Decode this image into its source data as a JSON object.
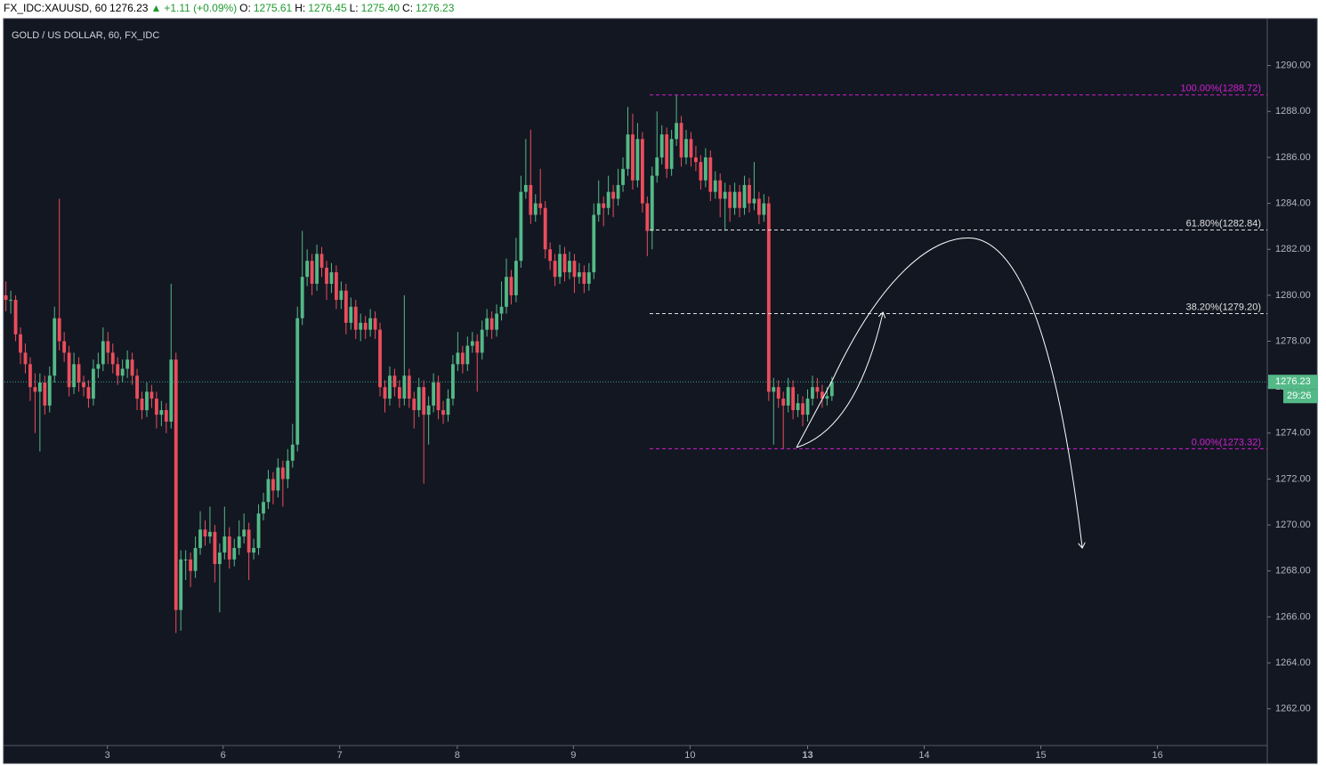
{
  "header": {
    "symbol": "FX_IDC:XAUUSD, 60",
    "last": "1276.23",
    "change": "+1.11 (+0.09%)",
    "o_label": "O:",
    "o": "1275.61",
    "h_label": "H:",
    "h": "1276.45",
    "l_label": "L:",
    "l": "1275.40",
    "c_label": "C:",
    "c": "1276.23"
  },
  "chart_data": {
    "type": "candlestick",
    "title": "GOLD / US DOLLAR, 60, FX_IDC",
    "countdown": "29:26",
    "up_color": "#53b987",
    "down_color": "#eb4d5c",
    "ylim": [
      1260.4,
      1292.0
    ],
    "yticks": [
      {
        "value": 1262,
        "label": "1262.00"
      },
      {
        "value": 1264,
        "label": "1264.00"
      },
      {
        "value": 1266,
        "label": "1266.00"
      },
      {
        "value": 1268,
        "label": "1268.00"
      },
      {
        "value": 1270,
        "label": "1270.00"
      },
      {
        "value": 1272,
        "label": "1272.00"
      },
      {
        "value": 1274,
        "label": "1274.00"
      },
      {
        "value": 1276,
        "label": "1276.00"
      },
      {
        "value": 1278,
        "label": "1278.00"
      },
      {
        "value": 1280,
        "label": "1280.00"
      },
      {
        "value": 1282,
        "label": "1282.00"
      },
      {
        "value": 1284,
        "label": "1284.00"
      },
      {
        "value": 1286,
        "label": "1286.00"
      },
      {
        "value": 1288,
        "label": "1288.00"
      },
      {
        "value": 1290,
        "label": "1290.00"
      }
    ],
    "xlim": [
      -0.3,
      259.6
    ],
    "xticks": [
      {
        "value": 20.9,
        "label": "3"
      },
      {
        "value": 44.7,
        "label": "6"
      },
      {
        "value": 68.7,
        "label": "7"
      },
      {
        "value": 92.9,
        "label": "8"
      },
      {
        "value": 116.8,
        "label": "9"
      },
      {
        "value": 140.8,
        "label": "10"
      },
      {
        "value": 165,
        "label": "13"
      },
      {
        "value": 189,
        "label": "14"
      },
      {
        "value": 213,
        "label": "15"
      },
      {
        "value": 237,
        "label": "16"
      }
    ],
    "fib_levels": [
      {
        "value": 1288.72,
        "label": "100.00%(1288.72)",
        "color": "#d020d0"
      },
      {
        "value": 1282.84,
        "label": "61.80%(1282.84)",
        "color": "#e0e0e0"
      },
      {
        "value": 1279.2,
        "label": "38.20%(1279.20)",
        "color": "#e0e0e0"
      },
      {
        "value": 1273.32,
        "label": "0.00%(1273.32)",
        "color": "#d020d0"
      }
    ],
    "ohlc": [
      [
        1280.0,
        1280.6,
        1279.3,
        1279.8
      ],
      [
        1279.8,
        1280.2,
        1279.2,
        1279.8
      ],
      [
        1279.8,
        1280.0,
        1278.0,
        1278.3
      ],
      [
        1278.3,
        1278.6,
        1277.0,
        1277.5
      ],
      [
        1277.5,
        1277.9,
        1276.6,
        1277.0
      ],
      [
        1277.0,
        1277.3,
        1275.4,
        1276.0
      ],
      [
        1276.0,
        1276.6,
        1274.0,
        1275.8
      ],
      [
        1275.8,
        1276.6,
        1273.2,
        1276.2
      ],
      [
        1276.2,
        1276.5,
        1274.8,
        1275.2
      ],
      [
        1275.2,
        1276.9,
        1274.9,
        1276.5
      ],
      [
        1276.5,
        1279.5,
        1276.2,
        1279.0
      ],
      [
        1279.0,
        1284.2,
        1277.6,
        1278.0
      ],
      [
        1278.0,
        1278.4,
        1277.1,
        1277.5
      ],
      [
        1277.5,
        1277.8,
        1275.6,
        1276.0
      ],
      [
        1276.0,
        1277.5,
        1275.7,
        1277.0
      ],
      [
        1277.0,
        1277.3,
        1275.8,
        1276.2
      ],
      [
        1276.2,
        1276.5,
        1275.6,
        1276.0
      ],
      [
        1276.0,
        1276.3,
        1275.1,
        1275.5
      ],
      [
        1275.5,
        1277.2,
        1275.2,
        1276.8
      ],
      [
        1276.8,
        1277.5,
        1276.4,
        1277.0
      ],
      [
        1277.0,
        1278.6,
        1276.7,
        1278.0
      ],
      [
        1278.0,
        1278.4,
        1277.0,
        1277.5
      ],
      [
        1277.5,
        1277.9,
        1276.6,
        1277.0
      ],
      [
        1277.0,
        1277.3,
        1276.1,
        1276.5
      ],
      [
        1276.5,
        1277.2,
        1276.2,
        1276.8
      ],
      [
        1276.8,
        1277.6,
        1276.4,
        1277.2
      ],
      [
        1277.2,
        1277.5,
        1276.1,
        1276.5
      ],
      [
        1276.5,
        1276.8,
        1275.0,
        1275.5
      ],
      [
        1275.5,
        1275.8,
        1274.6,
        1275.0
      ],
      [
        1275.0,
        1276.2,
        1274.7,
        1275.8
      ],
      [
        1275.8,
        1276.1,
        1275.1,
        1275.5
      ],
      [
        1275.5,
        1275.8,
        1274.2,
        1274.8
      ],
      [
        1274.8,
        1275.4,
        1274.3,
        1275.0
      ],
      [
        1275.0,
        1275.3,
        1274.0,
        1274.5
      ],
      [
        1274.5,
        1280.5,
        1274.2,
        1277.2
      ],
      [
        1277.2,
        1277.5,
        1265.3,
        1266.3
      ],
      [
        1266.3,
        1268.9,
        1265.4,
        1268.5
      ],
      [
        1268.5,
        1268.9,
        1267.6,
        1268.5
      ],
      [
        1268.5,
        1268.8,
        1267.3,
        1268.0
      ],
      [
        1268.0,
        1269.5,
        1267.7,
        1269.0
      ],
      [
        1269.0,
        1270.6,
        1268.7,
        1269.8
      ],
      [
        1269.8,
        1270.2,
        1269.1,
        1269.5
      ],
      [
        1269.5,
        1270.8,
        1269.2,
        1269.7
      ],
      [
        1269.7,
        1270.0,
        1267.5,
        1268.3
      ],
      [
        1268.3,
        1269.2,
        1266.2,
        1268.8
      ],
      [
        1268.8,
        1270.8,
        1268.5,
        1269.5
      ],
      [
        1269.5,
        1269.9,
        1268.1,
        1268.5
      ],
      [
        1268.5,
        1269.4,
        1268.2,
        1269.0
      ],
      [
        1269.0,
        1270.2,
        1268.7,
        1269.5
      ],
      [
        1269.5,
        1270.5,
        1269.2,
        1269.8
      ],
      [
        1269.8,
        1270.1,
        1267.6,
        1268.8
      ],
      [
        1268.8,
        1269.4,
        1268.5,
        1269.0
      ],
      [
        1269.0,
        1270.9,
        1268.7,
        1270.5
      ],
      [
        1270.5,
        1271.4,
        1270.2,
        1271.0
      ],
      [
        1271.0,
        1272.4,
        1270.7,
        1272.0
      ],
      [
        1272.0,
        1272.3,
        1270.9,
        1271.5
      ],
      [
        1271.5,
        1272.9,
        1271.2,
        1272.5
      ],
      [
        1272.5,
        1272.8,
        1270.8,
        1272.0
      ],
      [
        1272.0,
        1273.3,
        1271.6,
        1272.8
      ],
      [
        1272.8,
        1274.4,
        1272.5,
        1273.5
      ],
      [
        1273.5,
        1279.5,
        1273.2,
        1279.0
      ],
      [
        1279.0,
        1282.8,
        1278.7,
        1280.8
      ],
      [
        1280.8,
        1282.0,
        1280.4,
        1281.5
      ],
      [
        1281.5,
        1281.8,
        1280.0,
        1280.5
      ],
      [
        1280.5,
        1282.2,
        1280.2,
        1281.8
      ],
      [
        1281.8,
        1282.1,
        1280.8,
        1281.2
      ],
      [
        1281.2,
        1281.5,
        1279.8,
        1280.5
      ],
      [
        1280.5,
        1281.4,
        1280.1,
        1281.0
      ],
      [
        1281.0,
        1281.3,
        1279.4,
        1279.8
      ],
      [
        1279.8,
        1280.6,
        1279.4,
        1280.2
      ],
      [
        1280.2,
        1280.5,
        1278.3,
        1278.8
      ],
      [
        1278.8,
        1279.9,
        1278.5,
        1279.5
      ],
      [
        1279.5,
        1279.8,
        1278.1,
        1278.5
      ],
      [
        1278.5,
        1279.2,
        1278.0,
        1278.8
      ],
      [
        1278.8,
        1279.1,
        1278.1,
        1278.5
      ],
      [
        1278.5,
        1279.4,
        1278.2,
        1279.0
      ],
      [
        1279.0,
        1279.3,
        1278.1,
        1278.5
      ],
      [
        1278.5,
        1278.8,
        1275.6,
        1276.0
      ],
      [
        1276.0,
        1276.3,
        1274.9,
        1275.5
      ],
      [
        1275.5,
        1276.9,
        1275.2,
        1276.5
      ],
      [
        1276.5,
        1276.8,
        1275.6,
        1276.0
      ],
      [
        1276.0,
        1276.3,
        1275.1,
        1275.5
      ],
      [
        1275.5,
        1280.0,
        1275.2,
        1276.5
      ],
      [
        1276.5,
        1276.8,
        1275.1,
        1275.5
      ],
      [
        1275.5,
        1275.8,
        1274.2,
        1275.0
      ],
      [
        1275.0,
        1276.4,
        1274.7,
        1276.0
      ],
      [
        1276.0,
        1276.3,
        1271.8,
        1274.8
      ],
      [
        1274.8,
        1275.6,
        1273.5,
        1275.2
      ],
      [
        1275.2,
        1276.6,
        1274.9,
        1276.2
      ],
      [
        1276.2,
        1276.5,
        1274.6,
        1275.0
      ],
      [
        1275.0,
        1275.4,
        1274.4,
        1274.8
      ],
      [
        1274.8,
        1275.9,
        1274.5,
        1275.5
      ],
      [
        1275.5,
        1277.4,
        1275.2,
        1277.0
      ],
      [
        1277.0,
        1278.4,
        1276.7,
        1277.5
      ],
      [
        1277.5,
        1277.8,
        1276.6,
        1277.0
      ],
      [
        1277.0,
        1278.2,
        1276.7,
        1277.8
      ],
      [
        1277.8,
        1278.4,
        1277.5,
        1278.0
      ],
      [
        1278.0,
        1278.3,
        1275.8,
        1277.5
      ],
      [
        1277.5,
        1278.9,
        1277.2,
        1278.5
      ],
      [
        1278.5,
        1279.4,
        1278.2,
        1279.0
      ],
      [
        1279.0,
        1279.3,
        1278.1,
        1278.5
      ],
      [
        1278.5,
        1279.6,
        1278.2,
        1279.2
      ],
      [
        1279.2,
        1280.6,
        1278.9,
        1279.5
      ],
      [
        1279.5,
        1281.6,
        1279.2,
        1280.8
      ],
      [
        1280.8,
        1281.1,
        1279.6,
        1280.0
      ],
      [
        1280.0,
        1282.5,
        1279.7,
        1281.5
      ],
      [
        1281.5,
        1285.2,
        1281.2,
        1284.5
      ],
      [
        1284.5,
        1286.8,
        1284.2,
        1284.8
      ],
      [
        1284.8,
        1287.2,
        1283.1,
        1283.5
      ],
      [
        1283.5,
        1284.4,
        1283.2,
        1284.0
      ],
      [
        1284.0,
        1285.5,
        1283.5,
        1283.8
      ],
      [
        1283.8,
        1284.1,
        1281.6,
        1282.0
      ],
      [
        1282.0,
        1282.3,
        1281.1,
        1281.5
      ],
      [
        1281.5,
        1281.8,
        1280.4,
        1280.8
      ],
      [
        1280.8,
        1282.2,
        1280.5,
        1281.8
      ],
      [
        1281.8,
        1282.1,
        1280.6,
        1281.0
      ],
      [
        1281.0,
        1281.9,
        1280.7,
        1281.5
      ],
      [
        1281.5,
        1281.8,
        1280.1,
        1280.8
      ],
      [
        1280.8,
        1281.4,
        1280.5,
        1281.0
      ],
      [
        1281.0,
        1281.3,
        1280.1,
        1280.5
      ],
      [
        1280.5,
        1281.4,
        1280.2,
        1281.0
      ],
      [
        1281.0,
        1284.0,
        1280.7,
        1283.5
      ],
      [
        1283.5,
        1285.0,
        1283.2,
        1284.0
      ],
      [
        1284.0,
        1284.3,
        1283.0,
        1283.8
      ],
      [
        1283.8,
        1285.2,
        1283.5,
        1284.5
      ],
      [
        1284.5,
        1284.8,
        1283.4,
        1284.2
      ],
      [
        1284.2,
        1285.5,
        1283.9,
        1284.8
      ],
      [
        1284.8,
        1286.0,
        1284.5,
        1285.5
      ],
      [
        1285.5,
        1288.2,
        1285.2,
        1287.0
      ],
      [
        1287.0,
        1287.9,
        1284.6,
        1285.0
      ],
      [
        1285.0,
        1287.5,
        1284.7,
        1286.8
      ],
      [
        1286.8,
        1287.1,
        1283.6,
        1284.0
      ],
      [
        1284.0,
        1284.3,
        1281.7,
        1282.8
      ],
      [
        1282.8,
        1285.6,
        1282.0,
        1285.2
      ],
      [
        1285.2,
        1288.0,
        1284.9,
        1286.0
      ],
      [
        1286.0,
        1287.4,
        1285.7,
        1287.0
      ],
      [
        1287.0,
        1287.3,
        1285.1,
        1285.5
      ],
      [
        1285.5,
        1287.2,
        1285.2,
        1286.8
      ],
      [
        1286.8,
        1288.72,
        1286.5,
        1287.5
      ],
      [
        1287.5,
        1287.8,
        1285.6,
        1286.0
      ],
      [
        1286.0,
        1287.2,
        1285.7,
        1286.8
      ],
      [
        1286.8,
        1287.1,
        1285.6,
        1286.0
      ],
      [
        1286.0,
        1286.5,
        1285.4,
        1285.8
      ],
      [
        1285.8,
        1286.1,
        1284.6,
        1285.0
      ],
      [
        1285.0,
        1286.4,
        1284.7,
        1286.0
      ],
      [
        1286.0,
        1286.3,
        1284.1,
        1284.5
      ],
      [
        1284.5,
        1285.4,
        1284.2,
        1285.0
      ],
      [
        1285.0,
        1285.3,
        1283.4,
        1284.2
      ],
      [
        1284.2,
        1284.9,
        1282.8,
        1284.5
      ],
      [
        1284.5,
        1284.8,
        1283.2,
        1283.8
      ],
      [
        1283.8,
        1284.9,
        1283.5,
        1284.5
      ],
      [
        1284.5,
        1284.8,
        1283.4,
        1283.8
      ],
      [
        1283.8,
        1285.2,
        1283.5,
        1284.8
      ],
      [
        1284.8,
        1285.1,
        1283.6,
        1284.0
      ],
      [
        1284.0,
        1285.8,
        1283.7,
        1284.2
      ],
      [
        1284.2,
        1284.5,
        1283.1,
        1283.5
      ],
      [
        1283.5,
        1284.4,
        1283.2,
        1284.0
      ],
      [
        1284.0,
        1284.3,
        1275.4,
        1275.8
      ],
      [
        1275.8,
        1276.4,
        1273.5,
        1276.0
      ],
      [
        1276.0,
        1276.3,
        1275.1,
        1275.5
      ],
      [
        1275.5,
        1275.8,
        1273.32,
        1275.2
      ],
      [
        1275.2,
        1276.4,
        1274.9,
        1276.0
      ],
      [
        1276.0,
        1276.3,
        1274.6,
        1275.0
      ],
      [
        1275.0,
        1275.7,
        1274.7,
        1275.3
      ],
      [
        1275.3,
        1275.6,
        1274.3,
        1274.8
      ],
      [
        1274.8,
        1275.9,
        1274.5,
        1275.5
      ],
      [
        1275.5,
        1276.5,
        1275.2,
        1276.0
      ],
      [
        1276.0,
        1276.4,
        1275.5,
        1275.8
      ],
      [
        1275.8,
        1276.1,
        1275.1,
        1275.5
      ],
      [
        1275.5,
        1276.0,
        1275.2,
        1275.61
      ],
      [
        1275.61,
        1276.45,
        1275.4,
        1276.23
      ]
    ]
  }
}
